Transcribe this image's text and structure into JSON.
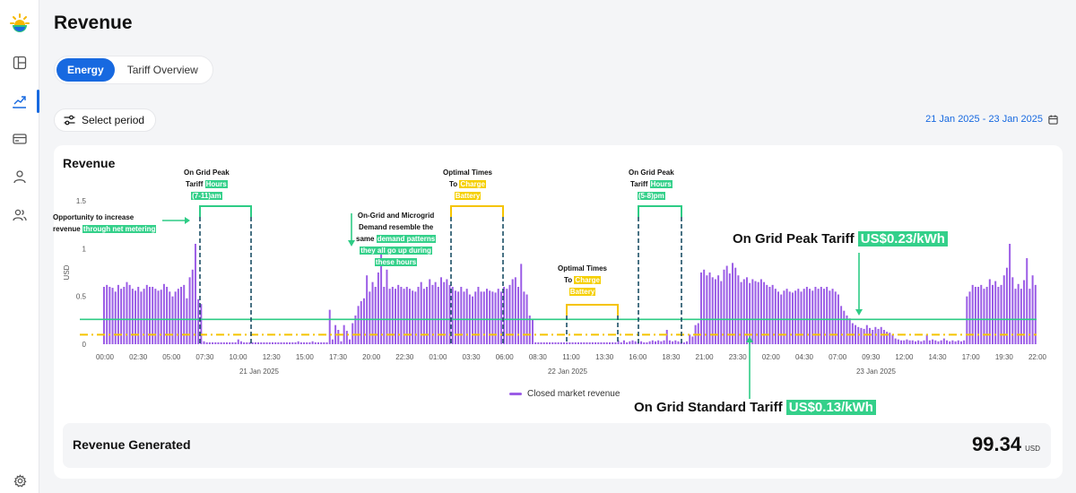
{
  "page": {
    "title": "Revenue"
  },
  "tabs": [
    {
      "label": "Energy",
      "active": true
    },
    {
      "label": "Tariff Overview",
      "active": false
    }
  ],
  "toolbar": {
    "select_period_label": "Select period",
    "date_range": "21 Jan 2025 - 23 Jan 2025"
  },
  "sidebar": {
    "items": [
      "logo-icon",
      "dashboard-icon",
      "chart-icon",
      "card-icon",
      "user-icon",
      "users-icon",
      "settings-icon"
    ]
  },
  "card": {
    "title": "Revenue",
    "legend_label": "Closed market revenue",
    "revenue_generated_label": "Revenue Generated",
    "revenue_generated_value": "99.34",
    "revenue_generated_unit": "USD"
  },
  "annotations": {
    "peak1": {
      "line1": "On Grid Peak",
      "line2": "Tariff",
      "hl2": "Hours",
      "line3": "(7-11)am"
    },
    "opportunity": {
      "line1": "Opportunity to increase",
      "line2": "revenue",
      "hl2": "through net metering"
    },
    "demand": {
      "line1": "On-Grid and Microgrid",
      "line2": "Demand resemble the",
      "line3a": "same",
      "hl3": "demand patterns",
      "hl4": "they all go up during",
      "hl5": "these hours"
    },
    "optimal1": {
      "line1": "Optimal Times",
      "line2": "To",
      "hl2": "Charge",
      "hl3": "Battery"
    },
    "optimal2": {
      "line1": "Optimal Times",
      "line2": "To",
      "hl2": "Charge",
      "hl3": "Battery"
    },
    "peak2": {
      "line1": "On Grid Peak",
      "line2": "Tariff",
      "hl2": "Hours",
      "hl3": "(5-8)pm"
    },
    "peak_tariff": {
      "text": "On Grid Peak Tariff",
      "value": "US$0.23/kWh"
    },
    "standard_tariff": {
      "text": "On Grid Standard Tariff",
      "value": "US$0.13/kWh"
    }
  },
  "chart_data": {
    "type": "bar",
    "ylabel": "USD",
    "ylim": [
      0,
      1.5
    ],
    "y_ticks": [
      "0",
      "0.5",
      "1",
      "1.5"
    ],
    "x_tick_labels": [
      "00:00",
      "02:30",
      "05:00",
      "07:30",
      "10:00",
      "12:30",
      "15:00",
      "17:30",
      "20:00",
      "22:30",
      "01:00",
      "03:30",
      "06:00",
      "08:30",
      "11:00",
      "13:30",
      "16:00",
      "18:30",
      "21:00",
      "23:30",
      "02:00",
      "04:30",
      "07:00",
      "09:30",
      "12:00",
      "14:30",
      "17:00",
      "19:30",
      "22:00"
    ],
    "date_labels": [
      "21 Jan 2025",
      "22 Jan 2025",
      "23 Jan 2025"
    ],
    "grid": false,
    "series": [
      {
        "name": "Closed market revenue",
        "color": "#9b5ce6",
        "values": [
          0.6,
          0.62,
          0.6,
          0.59,
          0.55,
          0.62,
          0.58,
          0.6,
          0.65,
          0.62,
          0.58,
          0.56,
          0.6,
          0.55,
          0.58,
          0.62,
          0.6,
          0.6,
          0.58,
          0.56,
          0.57,
          0.63,
          0.6,
          0.55,
          0.5,
          0.55,
          0.58,
          0.6,
          0.62,
          0.48,
          0.7,
          0.78,
          1.05,
          0.47,
          0.42,
          0.03,
          0.02,
          0.02,
          0.02,
          0.02,
          0.02,
          0.02,
          0.02,
          0.02,
          0.02,
          0.02,
          0.02,
          0.05,
          0.03,
          0.02,
          0.02,
          0.02,
          0.02,
          0.02,
          0.02,
          0.02,
          0.02,
          0.02,
          0.02,
          0.02,
          0.02,
          0.02,
          0.02,
          0.02,
          0.02,
          0.02,
          0.02,
          0.02,
          0.03,
          0.02,
          0.02,
          0.02,
          0.02,
          0.03,
          0.02,
          0.02,
          0.02,
          0.02,
          0.02,
          0.36,
          0.05,
          0.2,
          0.15,
          0.03,
          0.2,
          0.14,
          0.05,
          0.22,
          0.3,
          0.4,
          0.45,
          0.48,
          0.72,
          0.55,
          0.65,
          0.6,
          0.75,
          1.0,
          0.6,
          0.78,
          0.58,
          0.6,
          0.58,
          0.62,
          0.6,
          0.58,
          0.6,
          0.58,
          0.56,
          0.55,
          0.6,
          0.65,
          0.58,
          0.6,
          0.68,
          0.62,
          0.65,
          0.6,
          0.7,
          0.65,
          0.68,
          0.62,
          0.6,
          0.56,
          0.55,
          0.6,
          0.55,
          0.58,
          0.52,
          0.5,
          0.55,
          0.6,
          0.55,
          0.55,
          0.58,
          0.56,
          0.55,
          0.54,
          0.58,
          0.55,
          0.6,
          0.58,
          0.62,
          0.68,
          0.7,
          0.6,
          0.84,
          0.55,
          0.52,
          0.3,
          0.26,
          0.02,
          0.02,
          0.02,
          0.02,
          0.02,
          0.02,
          0.02,
          0.02,
          0.02,
          0.02,
          0.02,
          0.02,
          0.02,
          0.02,
          0.02,
          0.02,
          0.02,
          0.02,
          0.02,
          0.02,
          0.02,
          0.02,
          0.02,
          0.02,
          0.02,
          0.02,
          0.02,
          0.02,
          0.02,
          0.04,
          0.02,
          0.04,
          0.02,
          0.03,
          0.04,
          0.03,
          0.02,
          0.03,
          0.02,
          0.02,
          0.03,
          0.04,
          0.03,
          0.04,
          0.03,
          0.04,
          0.15,
          0.04,
          0.03,
          0.04,
          0.03,
          0.02,
          0.02,
          0.03,
          0.1,
          0.08,
          0.2,
          0.22,
          0.75,
          0.78,
          0.72,
          0.75,
          0.7,
          0.68,
          0.72,
          0.66,
          0.78,
          0.82,
          0.74,
          0.85,
          0.8,
          0.72,
          0.65,
          0.68,
          0.7,
          0.64,
          0.68,
          0.66,
          0.65,
          0.68,
          0.65,
          0.62,
          0.6,
          0.62,
          0.58,
          0.55,
          0.52,
          0.56,
          0.58,
          0.55,
          0.54,
          0.56,
          0.58,
          0.55,
          0.58,
          0.6,
          0.58,
          0.56,
          0.6,
          0.58,
          0.6,
          0.58,
          0.6,
          0.56,
          0.58,
          0.55,
          0.52,
          0.4,
          0.35,
          0.3,
          0.27,
          0.22,
          0.2,
          0.18,
          0.17,
          0.16,
          0.2,
          0.17,
          0.15,
          0.18,
          0.16,
          0.18,
          0.15,
          0.13,
          0.12,
          0.1,
          0.06,
          0.05,
          0.04,
          0.04,
          0.05,
          0.04,
          0.04,
          0.03,
          0.04,
          0.03,
          0.04,
          0.1,
          0.04,
          0.05,
          0.04,
          0.03,
          0.04,
          0.06,
          0.04,
          0.03,
          0.04,
          0.03,
          0.04,
          0.03,
          0.04,
          0.5,
          0.55,
          0.62,
          0.6,
          0.6,
          0.62,
          0.58,
          0.6,
          0.68,
          0.62,
          0.66,
          0.6,
          0.62,
          0.72,
          0.8,
          1.05,
          0.7,
          0.58,
          0.63,
          0.58,
          0.67,
          0.9,
          0.58,
          0.72,
          0.62
        ]
      }
    ],
    "reference_lines": [
      {
        "label": "On Grid Peak Tariff",
        "value": 0.26,
        "color": "#2ecc85",
        "style": "solid"
      },
      {
        "label": "On Grid Standard Tariff",
        "value": 0.1,
        "color": "#f5c400",
        "style": "dash-dot"
      }
    ],
    "legend_position": "bottom"
  }
}
